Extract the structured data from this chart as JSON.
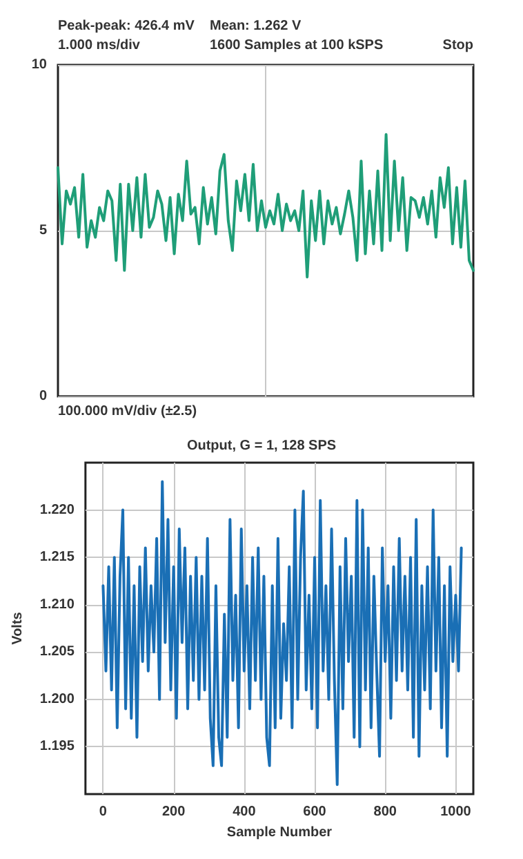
{
  "chart_data": [
    {
      "type": "line",
      "annotations": [
        "Peak-peak: 426.4 mV",
        "Mean: 1.262 V",
        "1.000 ms/div",
        "1600 Samples at 100 kSPS",
        "Stop",
        "100.000 mV/div (±2.5)"
      ],
      "categories": [
        null,
        null,
        null,
        null,
        null,
        null,
        null,
        null,
        null,
        null,
        null,
        null,
        null,
        null,
        null,
        null,
        null,
        null,
        null,
        null,
        null,
        null,
        null,
        null,
        null,
        null,
        null,
        null,
        null,
        null,
        null,
        null,
        null,
        null,
        null,
        null,
        null,
        null,
        null,
        null,
        null,
        null,
        null,
        null,
        null,
        null,
        null,
        null,
        null,
        null,
        null,
        null,
        null,
        null,
        null,
        null,
        null,
        null,
        null,
        null,
        null,
        null,
        null,
        null,
        null,
        null,
        null,
        null,
        null,
        null,
        null,
        null,
        null,
        null,
        null,
        null,
        null,
        null,
        null,
        null,
        null,
        null,
        null,
        null,
        null,
        null,
        null,
        null,
        null,
        null,
        null,
        null,
        null,
        null,
        null,
        null,
        null,
        null,
        null,
        null,
        null
      ],
      "series": [
        {
          "color": "#1f9e78",
          "values": [
            6.9,
            4.6,
            6.2,
            5.8,
            6.3,
            4.8,
            6.7,
            4.5,
            5.3,
            4.8,
            5.7,
            5.3,
            6.2,
            5.9,
            4.1,
            6.4,
            3.8,
            6.4,
            5.0,
            6.6,
            4.8,
            6.7,
            5.1,
            5.4,
            6.2,
            5.8,
            4.7,
            6.0,
            4.3,
            6.1,
            5.3,
            7.1,
            5.5,
            5.7,
            4.6,
            6.3,
            5.2,
            6.0,
            4.9,
            6.8,
            7.3,
            5.3,
            4.4,
            6.5,
            5.6,
            6.7,
            5.3,
            7.0,
            5.0,
            5.9,
            5.1,
            5.6,
            5.2,
            6.1,
            5.0,
            5.8,
            5.3,
            5.6,
            5.0,
            6.2,
            3.6,
            5.9,
            4.7,
            6.2,
            4.6,
            5.9,
            5.2,
            5.7,
            4.9,
            5.5,
            6.2,
            5.4,
            4.1,
            7.1,
            4.3,
            6.2,
            4.6,
            6.8,
            4.4,
            7.9,
            4.7,
            7.1,
            5.0,
            6.6,
            4.4,
            6.0,
            5.9,
            5.4,
            6.0,
            5.2,
            6.2,
            4.8,
            6.6,
            5.7,
            6.9,
            4.6,
            6.3,
            4.5,
            6.5,
            4.1,
            3.8
          ]
        }
      ],
      "ylim": [
        0,
        10
      ],
      "yticks": [
        0,
        5,
        10
      ],
      "grid": true,
      "marker": "none",
      "line_style": "solid"
    },
    {
      "type": "line",
      "title": "Output, G = 1, 128 SPS",
      "xlabel": "Sample Number",
      "ylabel": "Volts",
      "x": [
        0,
        8,
        16,
        24,
        32,
        40,
        48,
        56,
        64,
        72,
        80,
        88,
        96,
        104,
        112,
        120,
        128,
        136,
        144,
        152,
        160,
        168,
        176,
        184,
        192,
        200,
        208,
        216,
        224,
        232,
        240,
        248,
        256,
        264,
        272,
        280,
        288,
        296,
        304,
        312,
        320,
        328,
        336,
        344,
        352,
        360,
        368,
        376,
        384,
        392,
        400,
        408,
        416,
        424,
        432,
        440,
        448,
        456,
        464,
        472,
        480,
        488,
        496,
        504,
        512,
        520,
        528,
        536,
        544,
        552,
        560,
        568,
        576,
        584,
        592,
        600,
        608,
        616,
        624,
        632,
        640,
        648,
        656,
        664,
        672,
        680,
        688,
        696,
        704,
        712,
        720,
        728,
        736,
        744,
        752,
        760,
        768,
        776,
        784,
        792,
        800,
        808,
        816,
        824,
        832,
        840,
        848,
        856,
        864,
        872,
        880,
        888,
        896,
        904,
        912,
        920,
        928,
        936,
        944,
        952,
        960,
        968,
        976,
        984,
        992,
        1000,
        1008,
        1016
      ],
      "series": [
        {
          "color": "#1a6fb5",
          "values": [
            1.212,
            1.203,
            1.214,
            1.201,
            1.215,
            1.197,
            1.213,
            1.22,
            1.199,
            1.215,
            1.198,
            1.212,
            1.196,
            1.214,
            1.204,
            1.216,
            1.203,
            1.212,
            1.205,
            1.217,
            1.2,
            1.223,
            1.206,
            1.219,
            1.201,
            1.214,
            1.198,
            1.218,
            1.206,
            1.216,
            1.199,
            1.213,
            1.202,
            1.215,
            1.2,
            1.213,
            1.201,
            1.217,
            1.198,
            1.193,
            1.212,
            1.196,
            1.193,
            1.209,
            1.196,
            1.219,
            1.202,
            1.211,
            1.197,
            1.218,
            1.203,
            1.212,
            1.199,
            1.215,
            1.202,
            1.216,
            1.2,
            1.213,
            1.196,
            1.193,
            1.212,
            1.197,
            1.217,
            1.198,
            1.208,
            1.202,
            1.214,
            1.197,
            1.22,
            1.2,
            1.215,
            1.222,
            1.201,
            1.211,
            1.199,
            1.215,
            1.197,
            1.221,
            1.203,
            1.212,
            1.2,
            1.218,
            1.202,
            1.191,
            1.214,
            1.199,
            1.217,
            1.204,
            1.213,
            1.196,
            1.221,
            1.195,
            1.22,
            1.201,
            1.216,
            1.197,
            1.213,
            1.203,
            1.194,
            1.216,
            1.204,
            1.212,
            1.198,
            1.214,
            1.202,
            1.217,
            1.203,
            1.213,
            1.201,
            1.215,
            1.196,
            1.219,
            1.194,
            1.212,
            1.201,
            1.214,
            1.199,
            1.22,
            1.203,
            1.215,
            1.197,
            1.212,
            1.194,
            1.214,
            1.204,
            1.211,
            1.203,
            1.216
          ]
        }
      ],
      "xlim": [
        -50,
        1050
      ],
      "xticks": [
        0,
        200,
        400,
        600,
        800,
        1000
      ],
      "ylim": [
        1.19,
        1.225
      ],
      "yticks": [
        1.195,
        {
          "value": 1.2,
          "label": "1.200"
        },
        1.205,
        {
          "value": 1.21,
          "label": "1.210"
        },
        1.215,
        {
          "value": 1.22,
          "label": "1.220"
        }
      ],
      "grid": true,
      "marker": "none",
      "line_style": "solid"
    }
  ]
}
